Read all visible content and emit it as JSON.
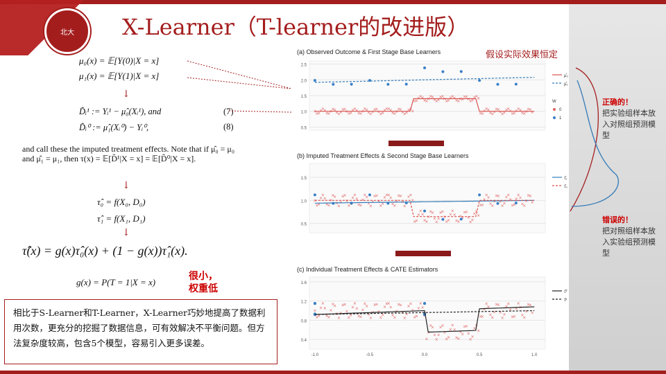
{
  "header": {
    "title": "X-Learner（T-learner的改进版）",
    "logo_text": "北大"
  },
  "left": {
    "mu0": "μ₀(x) = 𝔼[Y(0)|X = x]",
    "mu1": "μ₁(x) = 𝔼[Y(1)|X = x]",
    "d1": "D̃ᵢ¹ := Yᵢ¹ − μ̂₀(Xᵢ¹), and",
    "d1_num": "(7)",
    "d0": "D̃ᵢ⁰ := μ̂₁(Xᵢ⁰) − Yᵢ⁰,",
    "d0_num": "(8)",
    "para": "and call these the imputed treatment effects. Note that if μ̂₀ = μ₀ and μ̂₁ = μ₁, then τ(x) = 𝔼[D̃¹|X = x] = 𝔼[D̃⁰|X = x].",
    "tau0": "τ̂₀ = f(X₀, D₀)",
    "tau1": "τ̂₁ = f(X₁, D₁)",
    "tau": "τ̂(x) = g(x)τ̂₀(x) + (1 − g(x))τ̂₁(x).",
    "gx": "g(x) = P(T = 1|X = x)",
    "gx_note": "很小，权重低",
    "note": "相比于S-Learner和T-Learner，X-Learner巧妙地提高了数据利用次数，更充分的挖掘了数据信息，可有效解决不平衡问题。但方法复杂度较高，包含5个模型，容易引入更多误差。"
  },
  "right": {
    "assume": "假设实际效果恒定",
    "correct_title": "正确的！",
    "correct_body": "把实验组样本放入对照组预测模型",
    "wrong_title": "错误的！",
    "wrong_body": "把对照组样本放入实验组预测模型"
  },
  "chart_data": [
    {
      "type": "scatter",
      "title": "(a) Observed Outcome & First Stage Base Learners",
      "x": [
        -1.0,
        -0.5,
        0.0,
        0.5,
        1.0
      ],
      "ylim": [
        0.4,
        2.6
      ],
      "yticks": [
        0.5,
        1.0,
        1.5,
        2.0,
        2.5
      ],
      "legend": [
        {
          "label": "μ̂₀",
          "style": "solid",
          "color": "#d9534f"
        },
        {
          "label": "μ̂₁",
          "style": "dashed",
          "color": "#337ab7"
        }
      ],
      "w_legend": {
        "title": "W",
        "items": [
          {
            "label": "0",
            "color": "#e06060"
          },
          {
            "label": "1",
            "color": "#3a7fc8"
          }
        ]
      }
    },
    {
      "type": "scatter",
      "title": "(b) Imputed Treatment Effects & Second Stage Base Learners",
      "ylim": [
        0.3,
        1.8
      ],
      "yticks": [
        0.5,
        1.0,
        1.5
      ],
      "legend": [
        {
          "label": "τ̂₁",
          "style": "solid",
          "color": "#337ab7"
        },
        {
          "label": "τ̂₀",
          "style": "dashed",
          "color": "#d9534f"
        }
      ]
    },
    {
      "type": "scatter",
      "title": "(c) Individual Treatment Effects & CATE Estimators",
      "xlabels": [
        "-1.0",
        "-0.5",
        "0.0",
        "0.5",
        "1.0"
      ],
      "ylim": [
        0.2,
        1.7
      ],
      "yticks": [
        0.4,
        0.8,
        1.2,
        1.6
      ],
      "legend": [
        {
          "label": "τ̂ᵀ",
          "style": "solid",
          "color": "#222"
        },
        {
          "label": "τ̂ˣ",
          "style": "dashed",
          "color": "#222"
        }
      ]
    }
  ]
}
